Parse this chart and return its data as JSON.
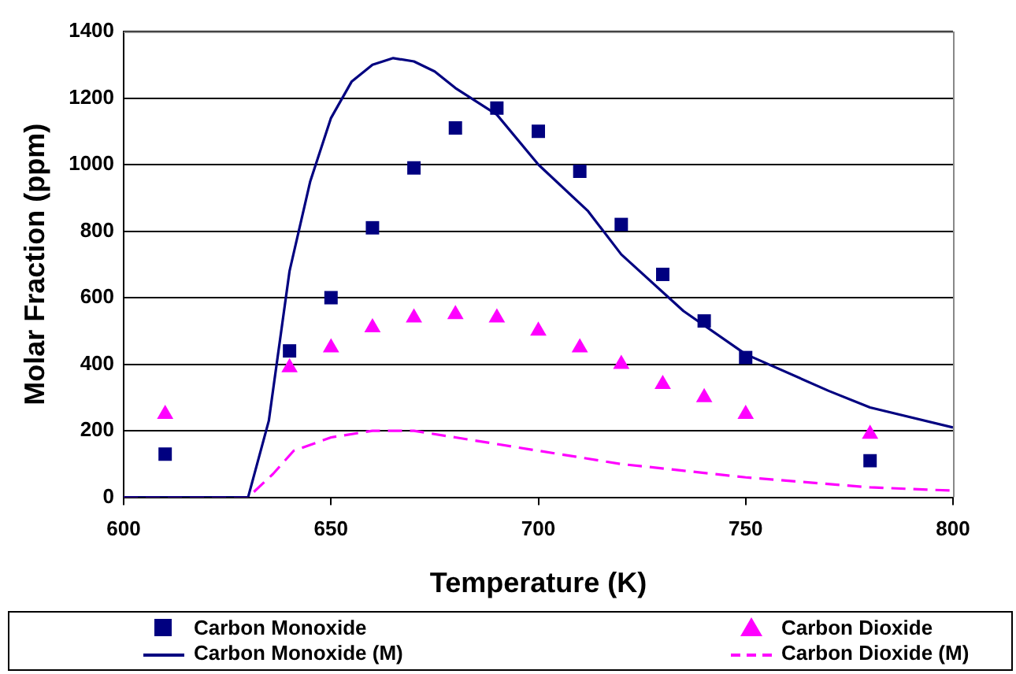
{
  "chart_data": {
    "type": "scatter",
    "xlabel": "Temperature (K)",
    "ylabel": "Molar Fraction (ppm)",
    "xlim": [
      600,
      800
    ],
    "xticks": [
      600,
      650,
      700,
      750,
      800
    ],
    "ylim": [
      0,
      1400
    ],
    "yticks": [
      0,
      200,
      400,
      600,
      800,
      1000,
      1200,
      1400
    ],
    "grid": "y",
    "legend": "bottom",
    "series": [
      {
        "name": "Carbon Monoxide",
        "type": "scatter",
        "marker": "square",
        "color": "#000080",
        "x": [
          610,
          640,
          650,
          660,
          670,
          680,
          690,
          700,
          710,
          720,
          730,
          740,
          750,
          780
        ],
        "values": [
          130,
          440,
          600,
          810,
          990,
          1110,
          1170,
          1100,
          980,
          820,
          670,
          530,
          420,
          110
        ]
      },
      {
        "name": "Carbon Dioxide",
        "type": "scatter",
        "marker": "triangle",
        "color": "#ff00ff",
        "x": [
          610,
          640,
          650,
          660,
          670,
          680,
          690,
          700,
          710,
          720,
          730,
          740,
          750,
          780
        ],
        "values": [
          250,
          390,
          450,
          510,
          540,
          550,
          540,
          500,
          450,
          400,
          340,
          300,
          250,
          190
        ]
      },
      {
        "name": "Carbon Monoxide (M)",
        "type": "line",
        "marker": "none",
        "line_style": "solid",
        "color": "#000080",
        "x": [
          600,
          625,
          630,
          635,
          640,
          645,
          650,
          655,
          660,
          665,
          670,
          675,
          680,
          690,
          700,
          712,
          720,
          735,
          750,
          770,
          780,
          800
        ],
        "values": [
          0,
          0,
          0,
          230,
          680,
          950,
          1140,
          1250,
          1300,
          1320,
          1310,
          1280,
          1230,
          1150,
          1000,
          860,
          730,
          560,
          430,
          320,
          270,
          210
        ]
      },
      {
        "name": "Carbon Dioxide (M)",
        "type": "line",
        "marker": "none",
        "line_style": "dashed",
        "color": "#ff00ff",
        "x": [
          600,
          630,
          636,
          641,
          650,
          660,
          665,
          670,
          680,
          690,
          700,
          720,
          750,
          780,
          800
        ],
        "values": [
          0,
          0,
          70,
          140,
          180,
          200,
          200,
          200,
          180,
          160,
          140,
          100,
          60,
          30,
          20
        ]
      }
    ]
  }
}
